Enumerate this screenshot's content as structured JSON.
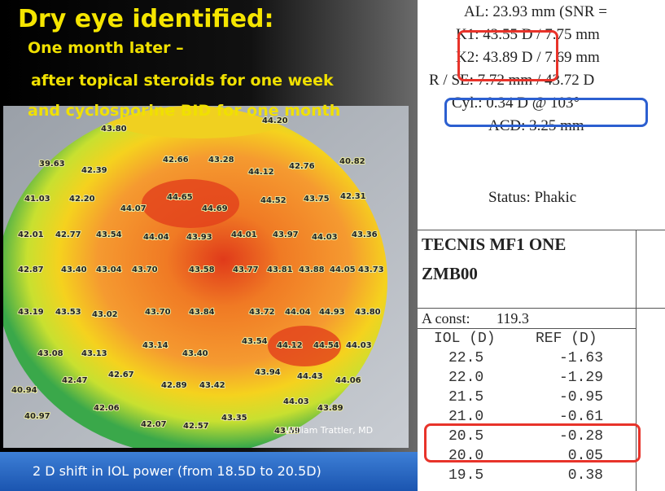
{
  "slide": {
    "title": "Dry eye identified:",
    "subtitle_lines": [
      "One month later –",
      "after topical steroids for one week",
      "and cyclosporine BID for one month"
    ],
    "map_labels": [
      "43.80",
      "44.20",
      "39.63",
      "42.39",
      "42.66",
      "43.28",
      "44.12",
      "42.76",
      "40.82",
      "41.03",
      "42.20",
      "44.07",
      "44.65",
      "44.69",
      "44.52",
      "43.75",
      "42.31",
      "42.01",
      "42.77",
      "43.54",
      "44.04",
      "43.93",
      "44.01",
      "43.97",
      "44.03",
      "43.36",
      "42.87",
      "43.40",
      "43.04",
      "43.70",
      "43.58",
      "43.77",
      "43.81",
      "43.88",
      "44.05",
      "43.73",
      "43.19",
      "43.53",
      "43.02",
      "43.70",
      "43.84",
      "43.72",
      "44.04",
      "44.93",
      "43.80",
      "43.08",
      "43.13",
      "43.14",
      "43.40",
      "43.54",
      "44.12",
      "44.54",
      "44.03",
      "40.94",
      "42.47",
      "42.67",
      "42.89",
      "43.42",
      "43.94",
      "44.43",
      "44.06",
      "42.06",
      "44.03",
      "43.89",
      "40.97",
      "42.07",
      "42.57",
      "43.35",
      "43.59"
    ],
    "credit": "William Trattler, MD",
    "footer": "2 D shift in IOL power (from 18.5D to 20.5D)"
  },
  "report": {
    "biometry": [
      "AL: 23.93 mm (SNR =",
      "K1: 43.55 D / 7.75 mm",
      "K2: 43.89 D / 7.69 mm",
      "R / SE: 7.72 mm / 43.72 D",
      "Cyl.: 0.34 D @ 103°",
      "ACD: 3.25 mm"
    ],
    "status": "Status: Phakic",
    "lens": [
      "TECNIS MF1 ONE",
      "ZMB00"
    ],
    "a_const": {
      "label": "A const:",
      "value": "119.3"
    },
    "columns": [
      "IOL (D)",
      "REF (D)"
    ],
    "rows": [
      [
        "22.5",
        "-1.63"
      ],
      [
        "22.0",
        "-1.29"
      ],
      [
        "21.5",
        "-0.95"
      ],
      [
        "21.0",
        "-0.61"
      ],
      [
        "20.5",
        "-0.28"
      ],
      [
        "20.0",
        "0.05"
      ],
      [
        "19.5",
        "0.38"
      ]
    ]
  }
}
